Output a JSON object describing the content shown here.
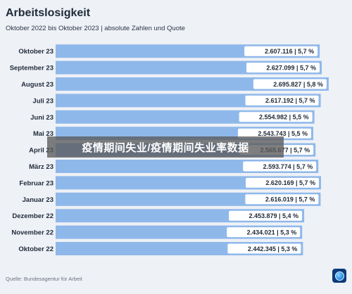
{
  "header": {
    "title": "Arbeitslosigkeit",
    "subtitle": "Oktober 2022 bis Oktober 2023 | absolute Zahlen und Quote"
  },
  "footer": {
    "source": "Quelle: Bundesagentur für Arbeit"
  },
  "overlay": {
    "text": "疫情期间失业/疫情期间失业率数据"
  },
  "colors": {
    "bar": "#8fb8ea",
    "label_box": "#ffffff",
    "text": "#1f2a3a",
    "background": "#eef1f6"
  },
  "chart_data": {
    "type": "bar",
    "orientation": "horizontal",
    "title": "Arbeitslosigkeit",
    "subtitle": "Oktober 2022 bis Oktober 2023 | absolute Zahlen und Quote",
    "categories": [
      "Oktober 23",
      "September 23",
      "August 23",
      "Juli 23",
      "Juni 23",
      "Mai 23",
      "April 23",
      "März 23",
      "Februar 23",
      "Januar 23",
      "Dezember 22",
      "November 22",
      "Oktober 22"
    ],
    "series": [
      {
        "values": [
          2607116,
          2627099,
          2695827,
          2617192,
          2554982,
          2543743,
          2565677,
          2593774,
          2620169,
          2616019,
          2453879,
          2434021,
          2442345
        ],
        "rates": [
          5.7,
          5.7,
          5.8,
          5.7,
          5.5,
          5.5,
          5.7,
          5.7,
          5.7,
          5.7,
          5.4,
          5.3,
          5.3
        ]
      }
    ],
    "data_labels": [
      "2.607.116 | 5,7 %",
      "2.627.099 | 5,7 %",
      "2.695.827 | 5,8 %",
      "2.617.192 | 5,7 %",
      "2.554.982 | 5,5 %",
      "2.543.743 | 5,5 %",
      "2.565.677 | 5,7 %",
      "2.593.774 | 5,7 %",
      "2.620.169 | 5,7 %",
      "2.616.019 | 5,7 %",
      "2.453.879 | 5,4 %",
      "2.434.021 | 5,3 %",
      "2.442.345 | 5,3 %"
    ],
    "xlim": [
      0,
      2780000
    ],
    "grid": false,
    "legend": "none"
  }
}
